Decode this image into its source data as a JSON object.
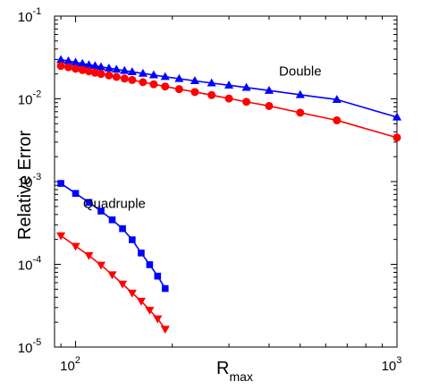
{
  "chart_data": {
    "type": "line",
    "xscale": "log",
    "yscale": "log",
    "xlim": [
      86,
      1000
    ],
    "ylim": [
      1e-05,
      0.1
    ],
    "xlabel": "R",
    "xlabel_sub": "max",
    "ylabel": "Relative Error",
    "xticks": [
      {
        "value": 100,
        "base": "10",
        "exp": "2"
      },
      {
        "value": 1000,
        "base": "10",
        "exp": "3"
      }
    ],
    "yticks": [
      {
        "value": 0.1,
        "base": "10",
        "exp": "-1"
      },
      {
        "value": 0.01,
        "base": "10",
        "exp": "-2"
      },
      {
        "value": 0.001,
        "base": "10",
        "exp": "-3"
      },
      {
        "value": 0.0001,
        "base": "10",
        "exp": "-4"
      },
      {
        "value": 1e-05,
        "base": "10",
        "exp": "-5"
      }
    ],
    "grid": false,
    "legend": "none",
    "annotations": [
      {
        "id": "double",
        "text": "Double",
        "x": 500,
        "y": 0.019
      },
      {
        "id": "quadruple",
        "text": "Quadruple",
        "x": 132,
        "y": 0.00048
      }
    ],
    "series": [
      {
        "id": "double-blue",
        "color": "#0000ff",
        "marker": "triangle-up",
        "x": [
          90,
          95,
          100,
          105,
          110,
          115,
          120,
          127,
          134,
          142,
          150,
          162,
          175,
          190,
          210,
          235,
          265,
          300,
          340,
          400,
          500,
          650,
          1000
        ],
        "y": [
          0.0297,
          0.0287,
          0.0276,
          0.0267,
          0.0258,
          0.0251,
          0.0243,
          0.0235,
          0.0227,
          0.0219,
          0.0212,
          0.0203,
          0.0194,
          0.0185,
          0.0175,
          0.0165,
          0.0155,
          0.0146,
          0.0137,
          0.0126,
          0.0112,
          0.0098,
          0.006
        ]
      },
      {
        "id": "double-red",
        "color": "#ff0000",
        "marker": "circle",
        "x": [
          90,
          95,
          100,
          105,
          110,
          115,
          120,
          127,
          134,
          142,
          150,
          162,
          175,
          190,
          210,
          235,
          265,
          300,
          340,
          400,
          500,
          650,
          1000
        ],
        "y": [
          0.025,
          0.0241,
          0.0231,
          0.0223,
          0.0215,
          0.0207,
          0.02,
          0.0192,
          0.0184,
          0.0176,
          0.0169,
          0.0159,
          0.015,
          0.0141,
          0.0131,
          0.0121,
          0.0111,
          0.0101,
          0.0092,
          0.0082,
          0.0068,
          0.0055,
          0.0034
        ]
      },
      {
        "id": "quadruple-blue",
        "color": "#0000ff",
        "marker": "square",
        "x": [
          90,
          100,
          110,
          120,
          130,
          140,
          150,
          160,
          170,
          180,
          190
        ],
        "y": [
          0.00095,
          0.00072,
          0.00056,
          0.00044,
          0.000345,
          0.00027,
          0.000198,
          0.000137,
          9.9e-05,
          7.2e-05,
          5.1e-05
        ]
      },
      {
        "id": "quadruple-red",
        "color": "#ff0000",
        "marker": "triangle-down",
        "x": [
          90,
          100,
          110,
          120,
          130,
          140,
          150,
          160,
          170,
          180,
          190
        ],
        "y": [
          0.000222,
          0.000166,
          0.000128,
          9.8e-05,
          7.5e-05,
          5.8e-05,
          4.5e-05,
          3.6e-05,
          2.8e-05,
          2.2e-05,
          1.65e-05
        ]
      }
    ]
  }
}
